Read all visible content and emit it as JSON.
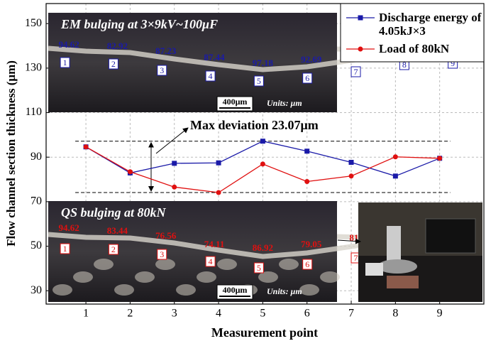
{
  "chart_data": {
    "type": "line",
    "x_label": "Measurement point",
    "y_label": "Flow channel section thickness (μm)",
    "x": [
      1,
      2,
      3,
      4,
      5,
      6,
      7,
      8,
      9
    ],
    "xlim": [
      0.1,
      10
    ],
    "xticks": [
      1,
      2,
      3,
      4,
      5,
      6,
      7,
      8,
      9
    ],
    "ylim": [
      24,
      159
    ],
    "yticks": [
      30,
      50,
      70,
      90,
      110,
      130,
      150
    ],
    "grid": true,
    "legend_position": "upper right",
    "series": [
      {
        "name": "Discharge energy of 4.05kJ×3",
        "color": "#1a1aa8",
        "marker": "square",
        "values": [
          94.62,
          82.92,
          87.23,
          87.44,
          97.18,
          92.69,
          87.67,
          81.51,
          89.49
        ]
      },
      {
        "name": "Load of 80kN",
        "color": "#e01010",
        "marker": "circle",
        "values": [
          94.62,
          83.44,
          76.56,
          74.11,
          86.92,
          79.05,
          81.51,
          90.15,
          89.49
        ]
      }
    ],
    "annotation": "Max deviation 23.07μm",
    "insets": [
      {
        "title": "EM bulging at 3×9kV~100μF",
        "scale_bar": "400μm",
        "units": "Units: μm"
      },
      {
        "title": "QS bulging at 80kN",
        "scale_bar": "400μm",
        "units": "Units: μm"
      }
    ]
  }
}
